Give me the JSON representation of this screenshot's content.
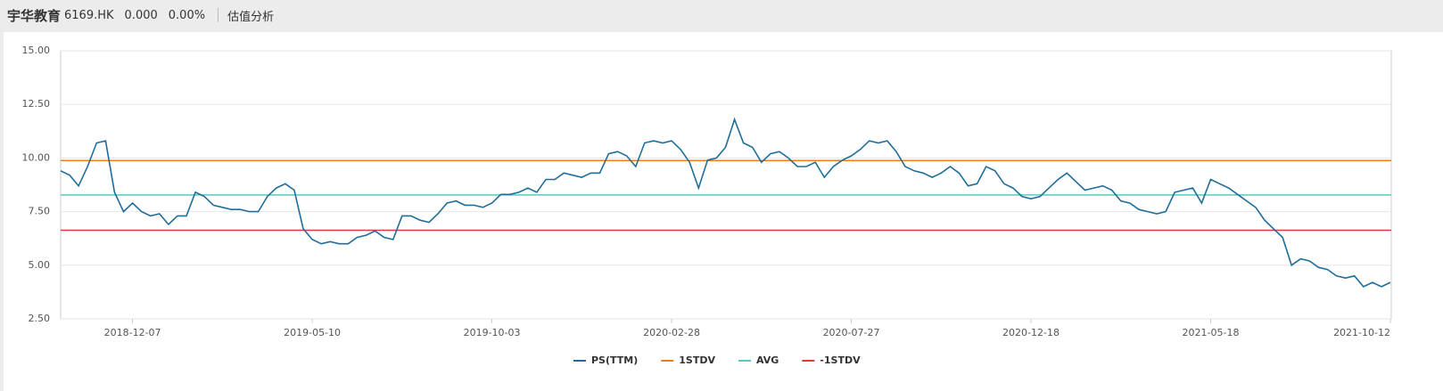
{
  "header": {
    "name": "宇华教育",
    "code": "6169.HK",
    "price": "0.000",
    "change": "0.00%",
    "tab": "估值分析"
  },
  "chart_data": {
    "type": "line",
    "categories": [
      null,
      null,
      null,
      null,
      null,
      null,
      null,
      null,
      "2018-12-07",
      null,
      null,
      null,
      null,
      null,
      null,
      null,
      null,
      null,
      null,
      null,
      null,
      null,
      null,
      null,
      null,
      null,
      null,
      null,
      "2019-05-10",
      null,
      null,
      null,
      null,
      null,
      null,
      null,
      null,
      null,
      null,
      null,
      null,
      null,
      null,
      null,
      null,
      null,
      null,
      null,
      "2019-10-03",
      null,
      null,
      null,
      null,
      null,
      null,
      null,
      null,
      null,
      null,
      null,
      null,
      null,
      null,
      null,
      null,
      null,
      null,
      null,
      "2020-02-28",
      null,
      null,
      null,
      null,
      null,
      null,
      null,
      null,
      null,
      null,
      null,
      null,
      null,
      null,
      null,
      null,
      null,
      null,
      null,
      "2020-07-27",
      null,
      null,
      null,
      null,
      null,
      null,
      null,
      null,
      null,
      null,
      null,
      null,
      null,
      null,
      null,
      null,
      null,
      null,
      null,
      "2020-12-18",
      null,
      null,
      null,
      null,
      null,
      null,
      null,
      null,
      null,
      null,
      null,
      null,
      null,
      null,
      null,
      null,
      null,
      null,
      null,
      "2021-05-18",
      null,
      null,
      null,
      null,
      null,
      null,
      null,
      null,
      null,
      null,
      null,
      null,
      null,
      null,
      null,
      null,
      null,
      null,
      null,
      "2021-10-12"
    ],
    "series": [
      {
        "name": "PS(TTM)",
        "color": "#1f6e99",
        "values": [
          9.4,
          9.2,
          8.7,
          9.6,
          10.7,
          10.8,
          8.4,
          7.5,
          7.9,
          7.5,
          7.3,
          7.4,
          6.9,
          7.3,
          7.3,
          8.4,
          8.2,
          7.8,
          7.7,
          7.6,
          7.6,
          7.5,
          7.5,
          8.2,
          8.6,
          8.8,
          8.5,
          6.7,
          6.2,
          6.0,
          6.1,
          6.0,
          6.0,
          6.3,
          6.4,
          6.6,
          6.3,
          6.2,
          7.3,
          7.3,
          7.1,
          7.0,
          7.4,
          7.9,
          8.0,
          7.8,
          7.8,
          7.7,
          7.9,
          8.3,
          8.3,
          8.4,
          8.6,
          8.4,
          9.0,
          9.0,
          9.3,
          9.2,
          9.1,
          9.3,
          9.3,
          10.2,
          10.3,
          10.1,
          9.6,
          10.7,
          10.8,
          10.7,
          10.8,
          10.4,
          9.8,
          8.6,
          9.9,
          10.0,
          10.5,
          11.8,
          10.7,
          10.5,
          9.8,
          10.2,
          10.3,
          10.0,
          9.6,
          9.6,
          9.8,
          9.1,
          9.6,
          9.9,
          10.1,
          10.4,
          10.8,
          10.7,
          10.8,
          10.3,
          9.6,
          9.4,
          9.3,
          9.1,
          9.3,
          9.6,
          9.3,
          8.7,
          8.8,
          9.6,
          9.4,
          8.8,
          8.6,
          8.2,
          8.1,
          8.2,
          8.6,
          9.0,
          9.3,
          8.9,
          8.5,
          8.6,
          8.7,
          8.5,
          8.0,
          7.9,
          7.6,
          7.5,
          7.4,
          7.5,
          8.4,
          8.5,
          8.6,
          7.9,
          9.0,
          8.8,
          8.6,
          8.3,
          8.0,
          7.7,
          7.1,
          6.7,
          6.3,
          5.0,
          5.3,
          5.2,
          4.9,
          4.8,
          4.5,
          4.4,
          4.5,
          4.0,
          4.2,
          4.0,
          4.2
        ]
      }
    ],
    "reference_lines": [
      {
        "name": "1STDV",
        "color": "#ee7d22",
        "value": 9.88
      },
      {
        "name": "AVG",
        "color": "#5cc6c2",
        "value": 8.28
      },
      {
        "name": "-1STDV",
        "color": "#e0393a",
        "value": 6.63
      }
    ],
    "ylim": [
      2.5,
      15
    ],
    "yticks": [
      {
        "value": 2.5,
        "label": "2.50"
      },
      {
        "value": 5,
        "label": "5.00"
      },
      {
        "value": 7.5,
        "label": "7.50"
      },
      {
        "value": 10,
        "label": "10.00"
      },
      {
        "value": 12.5,
        "label": "12.50"
      },
      {
        "value": 15,
        "label": "15.00"
      }
    ],
    "grid": true,
    "legend": "bottom"
  }
}
